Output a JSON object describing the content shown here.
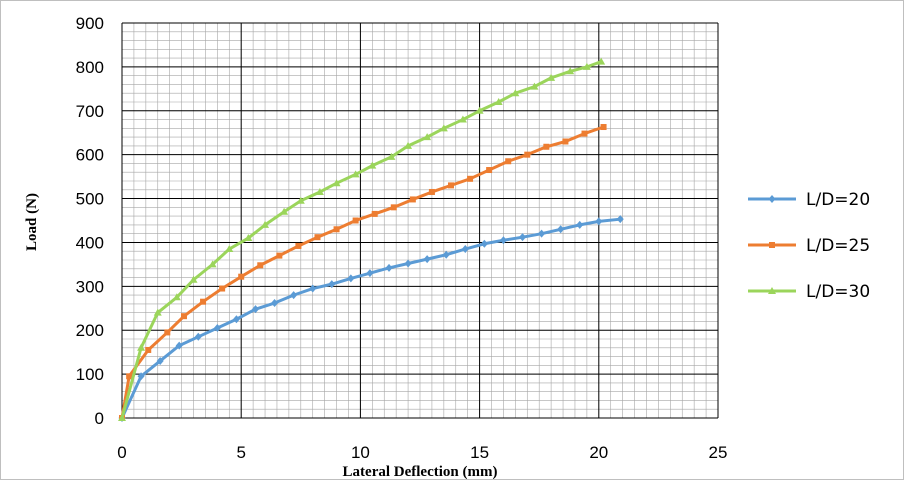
{
  "chart_data": {
    "type": "line",
    "title": "",
    "xlabel": "Lateral Deflection  (mm)",
    "ylabel": "Load (N)",
    "xlim": [
      0,
      25
    ],
    "ylim": [
      0,
      900
    ],
    "xticks": [
      0,
      5,
      10,
      15,
      20,
      25
    ],
    "yticks": [
      0,
      100,
      200,
      300,
      400,
      500,
      600,
      700,
      800,
      900
    ],
    "x_tick_labels": [
      "0",
      "5",
      "10",
      "15",
      "20",
      "25"
    ],
    "y_tick_labels": [
      "0",
      "100",
      "200",
      "300",
      "400",
      "500",
      "600",
      "700",
      "800",
      "900"
    ],
    "grid": true,
    "legend_position": "right",
    "series": [
      {
        "name": "L/D=20",
        "color": "#5b9bd5",
        "marker": "diamond",
        "x": [
          0,
          0.8,
          1.6,
          2.4,
          3.2,
          4.0,
          4.8,
          5.6,
          6.4,
          7.2,
          8.0,
          8.8,
          9.6,
          10.4,
          11.2,
          12.0,
          12.8,
          13.6,
          14.4,
          15.2,
          16.0,
          16.8,
          17.6,
          18.4,
          19.2,
          20.0,
          20.9
        ],
        "y": [
          0,
          95,
          130,
          165,
          185,
          205,
          225,
          248,
          262,
          280,
          295,
          305,
          318,
          330,
          342,
          352,
          362,
          372,
          385,
          397,
          405,
          412,
          420,
          430,
          440,
          448,
          453
        ]
      },
      {
        "name": "L/D=25",
        "color": "#ed7d31",
        "marker": "square",
        "x": [
          0,
          0.3,
          1.1,
          1.9,
          2.6,
          3.4,
          4.2,
          5.0,
          5.8,
          6.6,
          7.4,
          8.2,
          9.0,
          9.8,
          10.6,
          11.4,
          12.2,
          13.0,
          13.8,
          14.6,
          15.4,
          16.2,
          17.0,
          17.8,
          18.6,
          19.4,
          20.2
        ],
        "y": [
          0,
          95,
          155,
          195,
          232,
          265,
          295,
          322,
          348,
          370,
          392,
          412,
          430,
          450,
          465,
          480,
          498,
          515,
          530,
          545,
          565,
          585,
          600,
          618,
          630,
          648,
          663
        ]
      },
      {
        "name": "L/D=30",
        "color": "#9bd55b",
        "marker": "triangle",
        "x": [
          0,
          0.8,
          1.5,
          2.3,
          3.0,
          3.8,
          4.5,
          5.3,
          6.0,
          6.8,
          7.5,
          8.3,
          9.0,
          9.8,
          10.5,
          11.3,
          12.0,
          12.8,
          13.5,
          14.3,
          15.0,
          15.8,
          16.5,
          17.3,
          18.0,
          18.8,
          19.5,
          20.1
        ],
        "y": [
          0,
          160,
          240,
          275,
          315,
          350,
          385,
          410,
          440,
          470,
          495,
          515,
          535,
          555,
          575,
          595,
          620,
          640,
          660,
          680,
          700,
          720,
          740,
          755,
          775,
          790,
          800,
          812
        ]
      }
    ]
  }
}
